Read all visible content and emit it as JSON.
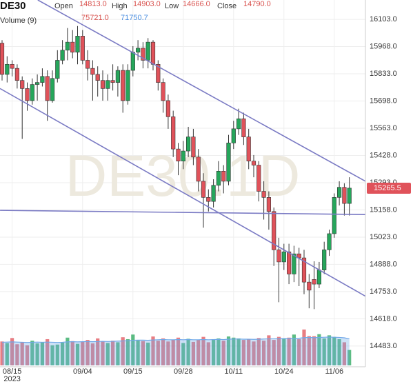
{
  "chart_data": {
    "type": "candlestick",
    "title": "DE30",
    "watermark": "DE30.1D",
    "ohlc_header": [
      {
        "name": "Open",
        "value": "14813.0"
      },
      {
        "name": "High",
        "value": "14903.0"
      },
      {
        "name": "Low",
        "value": "14666.0"
      },
      {
        "name": "Close",
        "value": "14790.0"
      }
    ],
    "volume_header": {
      "name": "Volume (9)",
      "values": [
        "75721.0",
        "71750.7"
      ]
    },
    "year_label": "2023",
    "categories": [
      null,
      null,
      "08/15",
      null,
      null,
      null,
      null,
      null,
      null,
      null,
      null,
      null,
      null,
      null,
      null,
      null,
      "09/04",
      null,
      null,
      null,
      null,
      null,
      null,
      null,
      null,
      null,
      "09/15",
      null,
      null,
      null,
      null,
      null,
      null,
      null,
      null,
      null,
      "09/28",
      null,
      null,
      null,
      null,
      null,
      null,
      null,
      null,
      null,
      "10/11",
      null,
      null,
      null,
      null,
      null,
      null,
      null,
      null,
      null,
      "10/24",
      null,
      null,
      null,
      null,
      null,
      null,
      null,
      null,
      null,
      "11/06",
      null,
      null,
      null
    ],
    "open": [
      15985,
      15830,
      15880,
      15860,
      15800,
      15760,
      15700,
      15780,
      15790,
      15820,
      15700,
      15810,
      15900,
      15950,
      15990,
      15940,
      16020,
      15900,
      15860,
      15830,
      15800,
      15760,
      15800,
      15790,
      15850,
      15700,
      15850,
      15940,
      15960,
      15900,
      15990,
      15880,
      15790,
      15700,
      15620,
      15460,
      15400,
      15450,
      15520,
      15420,
      15300,
      15220,
      15200,
      15280,
      15350,
      15300,
      15490,
      15560,
      15610,
      15520,
      15400,
      15380,
      15250,
      15220,
      15150,
      14960,
      14900,
      14950,
      14840,
      14940,
      14920,
      14800,
      14813,
      14790,
      14860,
      14960,
      15040,
      15220,
      15270,
      15190
    ],
    "high": [
      16000,
      15920,
      15900,
      15880,
      15820,
      15790,
      15810,
      15830,
      15860,
      15850,
      15850,
      15950,
      16000,
      16060,
      16050,
      16070,
      16050,
      15950,
      15900,
      15870,
      15850,
      15830,
      15880,
      15870,
      15880,
      15880,
      15970,
      16000,
      15990,
      16010,
      16000,
      15900,
      15810,
      15730,
      15650,
      15490,
      15500,
      15570,
      15560,
      15460,
      15340,
      15260,
      15310,
      15400,
      15380,
      15530,
      15600,
      15660,
      15640,
      15560,
      15430,
      15400,
      15300,
      15250,
      15170,
      15020,
      14990,
      14990,
      14980,
      14970,
      14960,
      14840,
      14903,
      14900,
      15000,
      15060,
      15240,
      15300,
      15290,
      15320
    ],
    "low": [
      15800,
      15790,
      15820,
      15760,
      15510,
      15650,
      15680,
      15700,
      15770,
      15600,
      15690,
      15790,
      15880,
      15900,
      15910,
      15880,
      15880,
      15800,
      15700,
      15720,
      15700,
      15700,
      15750,
      15720,
      15640,
      15680,
      15820,
      15900,
      15860,
      15860,
      15850,
      15750,
      15640,
      15560,
      15420,
      15330,
      15360,
      15420,
      15380,
      15250,
      15070,
      15150,
      15170,
      15250,
      15240,
      15280,
      15460,
      15530,
      15480,
      15360,
      15320,
      15200,
      15110,
      15060,
      14880,
      14700,
      14860,
      14790,
      14800,
      14780,
      14740,
      14670,
      14666,
      14770,
      14840,
      14930,
      15020,
      15180,
      15130,
      15130
    ],
    "close": [
      15830,
      15880,
      15860,
      15800,
      15760,
      15700,
      15780,
      15790,
      15820,
      15700,
      15810,
      15900,
      15950,
      15990,
      15940,
      16020,
      15900,
      15860,
      15830,
      15800,
      15760,
      15800,
      15790,
      15850,
      15700,
      15850,
      15940,
      15960,
      15900,
      15990,
      15880,
      15790,
      15700,
      15620,
      15460,
      15400,
      15450,
      15520,
      15420,
      15300,
      15220,
      15200,
      15280,
      15350,
      15300,
      15490,
      15560,
      15610,
      15520,
      15400,
      15380,
      15250,
      15220,
      15150,
      14960,
      14900,
      14950,
      14840,
      14940,
      14920,
      14800,
      14760,
      14790,
      14860,
      14960,
      15040,
      15220,
      15270,
      15190,
      15266
    ],
    "volume": [
      62000,
      58000,
      71000,
      55000,
      60000,
      52000,
      64000,
      57000,
      60000,
      68000,
      52000,
      54000,
      59000,
      72000,
      63000,
      56000,
      61000,
      66000,
      57000,
      70000,
      62000,
      58000,
      64000,
      60000,
      73000,
      68000,
      80000,
      66000,
      63000,
      59000,
      75000,
      64000,
      70000,
      62000,
      66000,
      72000,
      58000,
      69000,
      61000,
      66000,
      74000,
      60000,
      68000,
      70000,
      64000,
      75000,
      72000,
      70000,
      66000,
      68000,
      62000,
      71000,
      64000,
      78000,
      66000,
      74000,
      70000,
      72000,
      80000,
      68000,
      93000,
      76000,
      75721,
      81000,
      70000,
      78000,
      74000,
      68000,
      60000,
      40000
    ],
    "volume_ma": [
      60000,
      60500,
      61000,
      60500,
      60000,
      59500,
      60000,
      60500,
      60000,
      60500,
      60000,
      59500,
      60000,
      61000,
      61500,
      61000,
      61500,
      62000,
      61500,
      62000,
      62500,
      62000,
      62500,
      63000,
      63500,
      64000,
      65000,
      65500,
      65500,
      65000,
      66000,
      66500,
      67000,
      66500,
      66500,
      67000,
      66500,
      67000,
      66500,
      66500,
      67000,
      66500,
      67000,
      67500,
      67000,
      68000,
      68500,
      68500,
      68000,
      68000,
      67500,
      68000,
      68500,
      69000,
      69000,
      69500,
      69500,
      70000,
      70500,
      70500,
      72000,
      72500,
      71750.7,
      72500,
      73000,
      73500,
      73000,
      72500,
      71500,
      69000
    ],
    "up_color": "#26a65b",
    "down_color": "#e0525a",
    "volume_ma_color": "#6fa8e8",
    "trendline_color": "#7b7bc4",
    "trendlines": [
      {
        "start": [
          7.1,
          16199
        ],
        "end": [
          72.2,
          15300
        ]
      },
      {
        "start": [
          -0.4,
          15760
        ],
        "end": [
          72.2,
          14730
        ]
      },
      {
        "start": [
          -0.4,
          15156
        ],
        "end": [
          72.2,
          15135
        ]
      }
    ],
    "last_price": {
      "value": 15265.5,
      "label": "15265.5"
    },
    "ylim": [
      14380,
      16199
    ],
    "yticks": [
      {
        "value": 14483,
        "label": "14483.0"
      },
      {
        "value": 14618,
        "label": "14618.0"
      },
      {
        "value": 14753,
        "label": "14753.0"
      },
      {
        "value": 14888,
        "label": "14888.0"
      },
      {
        "value": 15023,
        "label": "15023.0"
      },
      {
        "value": 15158,
        "label": "15158.0"
      },
      {
        "value": 15293,
        "label": "15293.0"
      },
      {
        "value": 15428,
        "label": "15428.0"
      },
      {
        "value": 15563,
        "label": "15563.0"
      },
      {
        "value": 15698,
        "label": "15698.0"
      },
      {
        "value": 15833,
        "label": "15833.0"
      },
      {
        "value": 15968,
        "label": "15968.0"
      },
      {
        "value": 16103,
        "label": "16103.0"
      }
    ],
    "grid": true
  }
}
